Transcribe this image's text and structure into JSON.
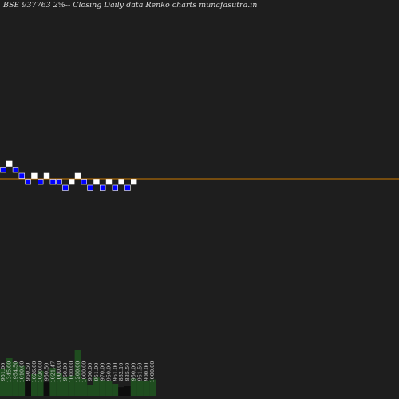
{
  "chart_data": {
    "type": "renko",
    "title": "BSE 937763 2%-- Closing Daily data Renko charts munafasutra.in",
    "colors": {
      "background": "#1e1e1e",
      "up_brick": "#ffffff",
      "down_brick": "#0000ff",
      "brick_border": "#ffffff",
      "reference_line": "#cc7a00",
      "volume_bar": "#1f4d1f",
      "volume_bar_dark": "#0d0d0d"
    },
    "bricks": [
      {
        "dir": "down",
        "level": 1
      },
      {
        "dir": "up",
        "level": 0
      },
      {
        "dir": "down",
        "level": 1
      },
      {
        "dir": "down",
        "level": 2
      },
      {
        "dir": "down",
        "level": 3
      },
      {
        "dir": "up",
        "level": 2
      },
      {
        "dir": "down",
        "level": 3
      },
      {
        "dir": "up",
        "level": 2
      },
      {
        "dir": "down",
        "level": 3
      },
      {
        "dir": "down",
        "level": 3
      },
      {
        "dir": "down",
        "level": 4
      },
      {
        "dir": "up",
        "level": 3
      },
      {
        "dir": "up",
        "level": 2
      },
      {
        "dir": "down",
        "level": 3
      },
      {
        "dir": "down",
        "level": 4
      },
      {
        "dir": "up",
        "level": 3
      },
      {
        "dir": "down",
        "level": 4
      },
      {
        "dir": "up",
        "level": 3
      },
      {
        "dir": "down",
        "level": 4
      },
      {
        "dir": "up",
        "level": 3
      },
      {
        "dir": "down",
        "level": 4
      },
      {
        "dir": "up",
        "level": 3
      }
    ],
    "reference_level": 3,
    "volumes": [
      {
        "label": "951.00",
        "value": 0.55
      },
      {
        "label": "1345.00",
        "value": 0.8
      },
      {
        "label": "1954.50",
        "value": 0.7
      },
      {
        "label": "1010.00",
        "value": 0.62
      },
      {
        "label": "950.50",
        "value": 0.3
      },
      {
        "label": "1026.00",
        "value": 0.45
      },
      {
        "label": "1020.00",
        "value": 0.52
      },
      {
        "label": "950.50",
        "value": 0.28
      },
      {
        "label": "1021.47",
        "value": 0.58
      },
      {
        "label": "1000.00",
        "value": 0.48
      },
      {
        "label": "950.00",
        "value": 0.4
      },
      {
        "label": "1000.00",
        "value": 0.42
      },
      {
        "label": "1200.00",
        "value": 0.95
      },
      {
        "label": "1000.00",
        "value": 0.35
      },
      {
        "label": "900.00",
        "value": 0.22
      },
      {
        "label": "951.00",
        "value": 0.38
      },
      {
        "label": "970.00",
        "value": 0.33
      },
      {
        "label": "950.00",
        "value": 0.3
      },
      {
        "label": "951.00",
        "value": 0.25
      },
      {
        "label": "832.10",
        "value": 0.18
      },
      {
        "label": "835.50",
        "value": 0.2
      },
      {
        "label": "950.00",
        "value": 0.36
      },
      {
        "label": "951.50",
        "value": 0.32
      },
      {
        "label": "900.00",
        "value": 0.3
      },
      {
        "label": "1000.00",
        "value": 0.34
      }
    ]
  }
}
